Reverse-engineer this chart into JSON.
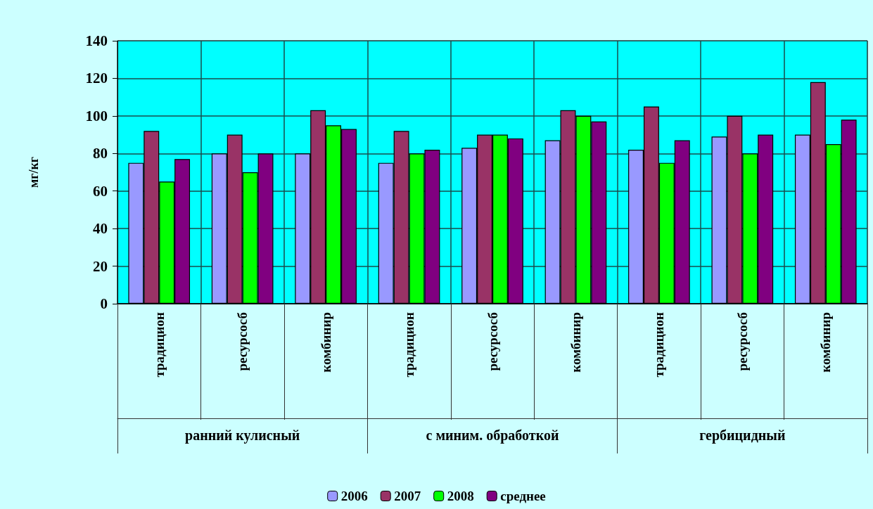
{
  "chart_data": {
    "type": "bar",
    "ylabel": "мг/кг",
    "categories": [
      "традицион",
      "ресурсосб",
      "комбинир",
      "традицион",
      "ресурсосб",
      "комбинир",
      "традицион",
      "ресурсосб",
      "комбинир"
    ],
    "annotations": [
      "ранний кулисный",
      "с миним. обработкой",
      "гербицидный"
    ],
    "series": [
      {
        "name": "2006",
        "color": "#9999ff",
        "values": [
          75,
          80,
          80,
          75,
          83,
          87,
          82,
          89,
          90
        ]
      },
      {
        "name": "2007",
        "color": "#993366",
        "values": [
          92,
          90,
          103,
          92,
          90,
          103,
          105,
          100,
          118
        ]
      },
      {
        "name": "2008",
        "color": "#00ff00",
        "values": [
          65,
          70,
          95,
          80,
          90,
          100,
          75,
          80,
          85
        ]
      },
      {
        "name": "среднее",
        "color": "#800080",
        "values": [
          77,
          80,
          93,
          82,
          88,
          97,
          87,
          90,
          98
        ]
      }
    ],
    "ylim": [
      0,
      140
    ],
    "yticks": [
      0,
      20,
      40,
      60,
      80,
      100,
      120,
      140
    ],
    "grid": true,
    "legend": "bottom"
  }
}
